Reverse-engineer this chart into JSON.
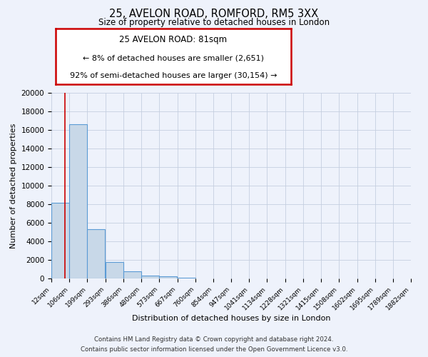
{
  "title": "25, AVELON ROAD, ROMFORD, RM5 3XX",
  "subtitle": "Size of property relative to detached houses in London",
  "xlabel": "Distribution of detached houses by size in London",
  "ylabel": "Number of detached properties",
  "bar_left_edges": [
    12,
    106,
    199,
    293,
    386,
    480,
    573,
    667,
    760,
    854,
    947,
    1041,
    1134,
    1228,
    1321,
    1415,
    1508,
    1602,
    1695,
    1789
  ],
  "bar_heights": [
    8150,
    16600,
    5300,
    1800,
    750,
    300,
    200,
    100,
    0,
    0,
    0,
    0,
    0,
    0,
    0,
    0,
    0,
    0,
    0,
    0
  ],
  "bin_width": 93,
  "x_tick_labels": [
    "12sqm",
    "106sqm",
    "199sqm",
    "293sqm",
    "386sqm",
    "480sqm",
    "573sqm",
    "667sqm",
    "760sqm",
    "854sqm",
    "947sqm",
    "1041sqm",
    "1134sqm",
    "1228sqm",
    "1321sqm",
    "1415sqm",
    "1508sqm",
    "1602sqm",
    "1695sqm",
    "1789sqm",
    "1882sqm"
  ],
  "ylim": [
    0,
    20000
  ],
  "yticks": [
    0,
    2000,
    4000,
    6000,
    8000,
    10000,
    12000,
    14000,
    16000,
    18000,
    20000
  ],
  "bar_color": "#c8d8e8",
  "bar_edge_color": "#5b9bd5",
  "red_line_x": 81,
  "annotation_title": "25 AVELON ROAD: 81sqm",
  "annotation_line1": "← 8% of detached houses are smaller (2,651)",
  "annotation_line2": "92% of semi-detached houses are larger (30,154) →",
  "annotation_box_color": "#ffffff",
  "annotation_box_edge": "#cc0000",
  "footer1": "Contains HM Land Registry data © Crown copyright and database right 2024.",
  "footer2": "Contains public sector information licensed under the Open Government Licence v3.0.",
  "background_color": "#eef2fb",
  "grid_color": "#c5cfe0"
}
